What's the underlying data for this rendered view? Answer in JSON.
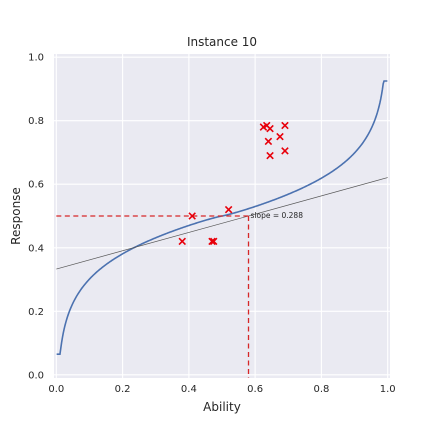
{
  "chart_data": {
    "type": "scatter",
    "title": "Instance 10",
    "xlabel": "Ability",
    "ylabel": "Response",
    "xlim": [
      0,
      1
    ],
    "ylim": [
      0,
      1
    ],
    "xticks": [
      "0.0",
      "0.2",
      "0.4",
      "0.6",
      "0.8",
      "1.0"
    ],
    "yticks": [
      "0.0",
      "0.2",
      "0.4",
      "0.6",
      "0.8",
      "1.0"
    ],
    "grid": true,
    "colors": {
      "background": "#eaeaf2",
      "curve": "#4c72b0",
      "points": "#e8000b",
      "guide": "#d62728",
      "tangent": "#555555"
    },
    "points": [
      {
        "x": 0.38,
        "y": 0.42
      },
      {
        "x": 0.41,
        "y": 0.5
      },
      {
        "x": 0.47,
        "y": 0.42
      },
      {
        "x": 0.475,
        "y": 0.42
      },
      {
        "x": 0.52,
        "y": 0.52
      },
      {
        "x": 0.625,
        "y": 0.78
      },
      {
        "x": 0.635,
        "y": 0.785
      },
      {
        "x": 0.645,
        "y": 0.775
      },
      {
        "x": 0.64,
        "y": 0.735
      },
      {
        "x": 0.645,
        "y": 0.69
      },
      {
        "x": 0.675,
        "y": 0.75
      },
      {
        "x": 0.69,
        "y": 0.785
      },
      {
        "x": 0.69,
        "y": 0.705
      }
    ],
    "guide_point": {
      "x": 0.58,
      "y": 0.5
    },
    "tangent": {
      "slope": 0.288,
      "intercept": 0.333
    },
    "annotation": "slope = 0.288"
  }
}
